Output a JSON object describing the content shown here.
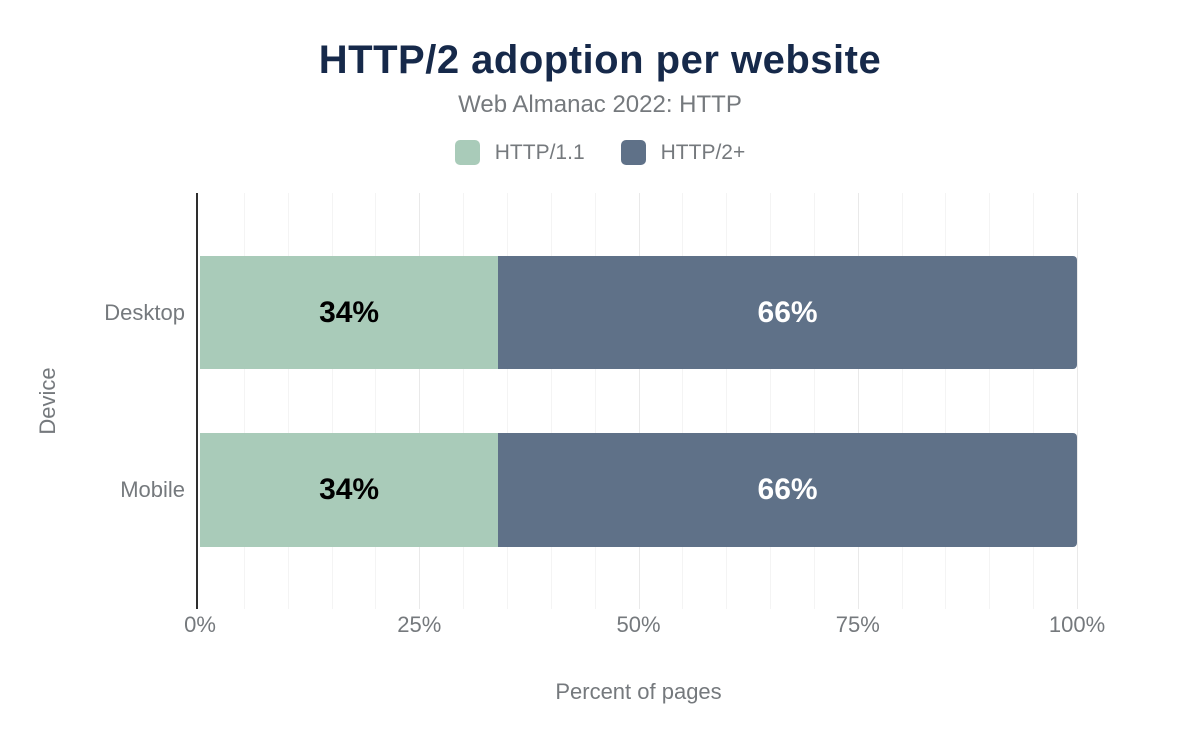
{
  "chart_data": {
    "type": "bar",
    "orientation": "horizontal",
    "stacked": true,
    "title": "HTTP/2 adoption per website",
    "subtitle": "Web Almanac 2022: HTTP",
    "categories": [
      "Desktop",
      "Mobile"
    ],
    "series": [
      {
        "name": "HTTP/1.1",
        "values": [
          34,
          34
        ],
        "color": "#a9cbb9",
        "label_color": "#000000"
      },
      {
        "name": "HTTP/2+",
        "values": [
          66,
          66
        ],
        "color": "#5f7188",
        "label_color": "#ffffff"
      }
    ],
    "data_label_suffix": "%",
    "xlabel": "Percent of pages",
    "ylabel": "Device",
    "xlim": [
      0,
      100
    ],
    "x_ticks": [
      {
        "value": 0,
        "label": "0%"
      },
      {
        "value": 25,
        "label": "25%"
      },
      {
        "value": 50,
        "label": "50%"
      },
      {
        "value": 75,
        "label": "75%"
      },
      {
        "value": 100,
        "label": "100%"
      }
    ],
    "grid": {
      "on": true,
      "minor_step": 5,
      "major_step": 25
    },
    "legend_position": "top",
    "colors": {
      "title": "#16294a",
      "text_muted": "#75797d",
      "axis_line": "#2e2e2e",
      "grid_minor": "#f4f4f4",
      "grid_major": "#e9e9e9",
      "background": "#ffffff"
    }
  }
}
